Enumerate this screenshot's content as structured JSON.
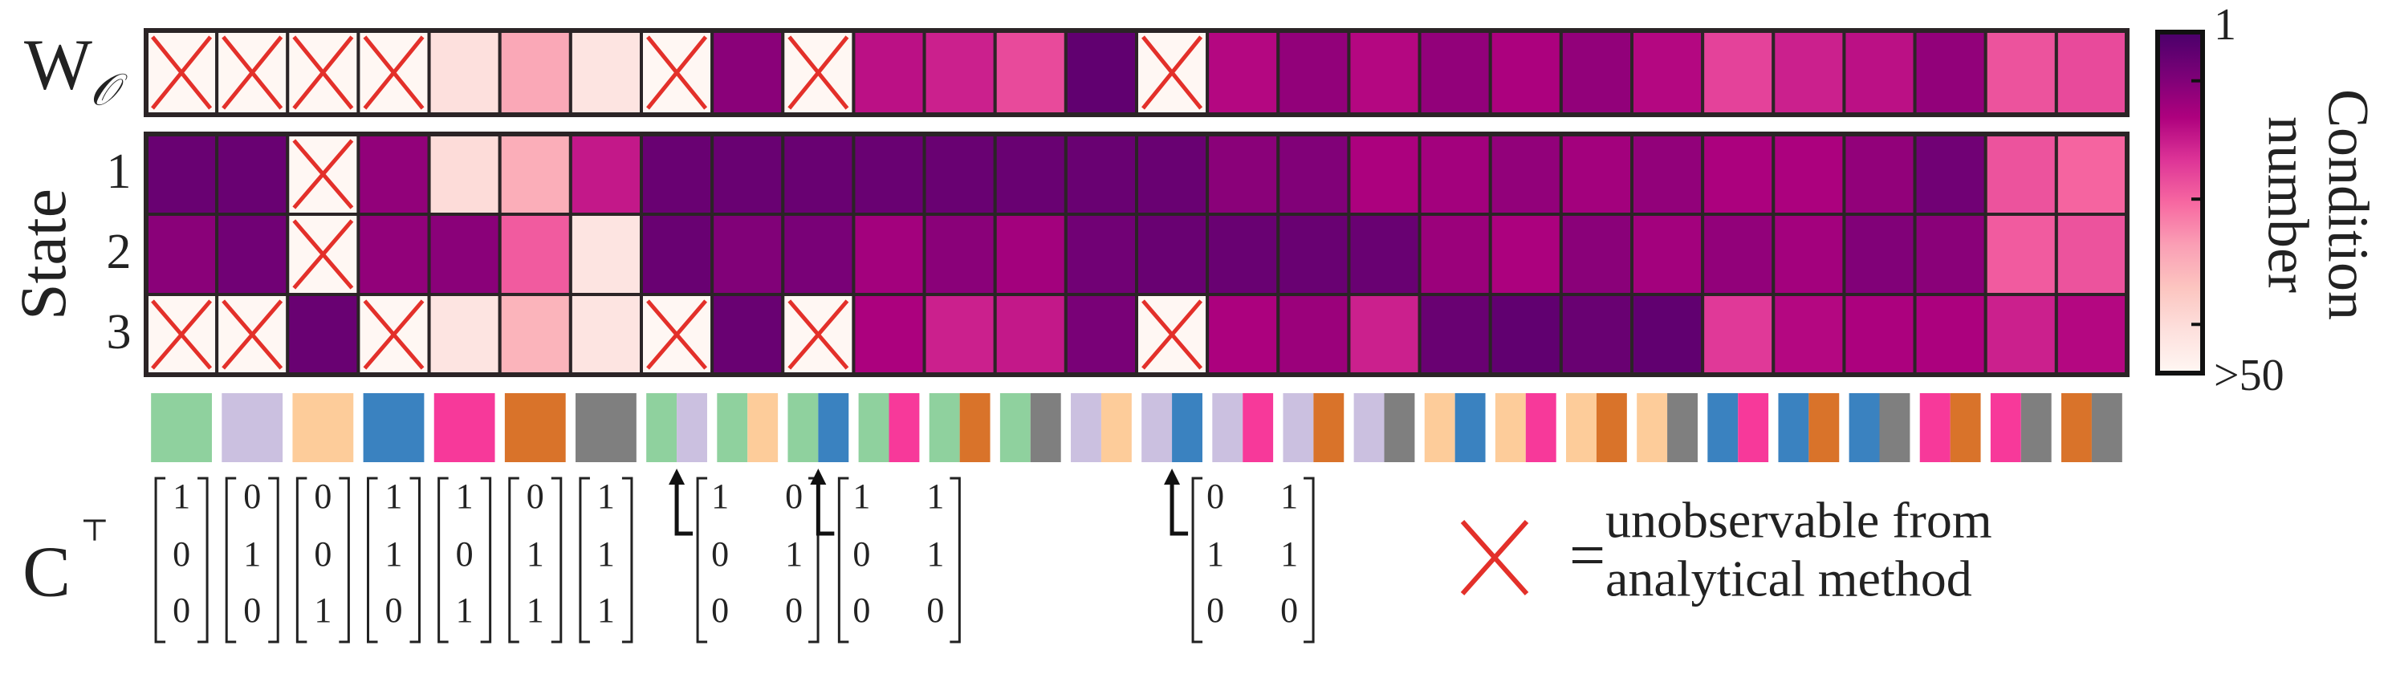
{
  "chart_data": {
    "type": "heatmap",
    "rows": [
      {
        "label": "W",
        "sub": "𝒪",
        "values": [
          null,
          null,
          null,
          null,
          44,
          33,
          45,
          null,
          9,
          null,
          15,
          17,
          22,
          4,
          null,
          14,
          10,
          14,
          10,
          13,
          10,
          14,
          21,
          17,
          15,
          10,
          23,
          22
        ]
      },
      {
        "label": "1",
        "values": [
          5,
          5,
          null,
          10,
          43,
          34,
          16,
          5,
          5,
          5,
          5,
          5,
          5,
          5,
          5,
          9,
          8,
          13,
          12,
          10,
          12,
          10,
          13,
          13,
          10,
          6,
          23,
          25
        ]
      },
      {
        "label": "2",
        "values": [
          9,
          6,
          null,
          10,
          9,
          24,
          45,
          5,
          8,
          7,
          12,
          9,
          12,
          6,
          5,
          5,
          5,
          5,
          11,
          13,
          9,
          12,
          10,
          12,
          8,
          9,
          24,
          23
        ]
      },
      {
        "label": "3",
        "values": [
          null,
          null,
          5,
          null,
          45,
          35,
          45,
          null,
          5,
          null,
          13,
          17,
          16,
          7,
          null,
          13,
          11,
          17,
          5,
          4,
          5,
          4,
          20,
          14,
          13,
          13,
          17,
          14
        ]
      }
    ],
    "group_label": "State",
    "colorbar": {
      "title": [
        "Condition",
        "number"
      ],
      "lim": [
        1,
        50
      ],
      "ticks": [
        1,
        {
          "value": 50,
          "label": ">50"
        }
      ],
      "minor_ticks": [
        8,
        25,
        43
      ],
      "colormap": [
        "#49006a",
        "#7a0177",
        "#ae017e",
        "#dd3497",
        "#f768a1",
        "#fa9fb5",
        "#fcc5c0",
        "#fde0dd",
        "#fff7f3"
      ]
    },
    "column_colors": [
      [
        "#8fd19e"
      ],
      [
        "#cbc0e0"
      ],
      [
        "#fdcc9a"
      ],
      [
        "#3a82c0"
      ],
      [
        "#f7399a"
      ],
      [
        "#d9732a"
      ],
      [
        "#7f7f7f"
      ],
      [
        "#8fd19e",
        "#cbc0e0"
      ],
      [
        "#8fd19e",
        "#fdcc9a"
      ],
      [
        "#8fd19e",
        "#3a82c0"
      ],
      [
        "#8fd19e",
        "#f7399a"
      ],
      [
        "#8fd19e",
        "#d9732a"
      ],
      [
        "#8fd19e",
        "#7f7f7f"
      ],
      [
        "#cbc0e0",
        "#fdcc9a"
      ],
      [
        "#cbc0e0",
        "#3a82c0"
      ],
      [
        "#cbc0e0",
        "#f7399a"
      ],
      [
        "#cbc0e0",
        "#d9732a"
      ],
      [
        "#cbc0e0",
        "#7f7f7f"
      ],
      [
        "#fdcc9a",
        "#3a82c0"
      ],
      [
        "#fdcc9a",
        "#f7399a"
      ],
      [
        "#fdcc9a",
        "#d9732a"
      ],
      [
        "#fdcc9a",
        "#7f7f7f"
      ],
      [
        "#3a82c0",
        "#f7399a"
      ],
      [
        "#3a82c0",
        "#d9732a"
      ],
      [
        "#3a82c0",
        "#7f7f7f"
      ],
      [
        "#f7399a",
        "#d9732a"
      ],
      [
        "#f7399a",
        "#7f7f7f"
      ],
      [
        "#d9732a",
        "#7f7f7f"
      ]
    ],
    "c_label": {
      "text": "C",
      "sup": "⊤"
    },
    "vectors": [
      [
        1,
        0,
        0
      ],
      [
        0,
        1,
        0
      ],
      [
        0,
        0,
        1
      ],
      [
        1,
        1,
        0
      ],
      [
        1,
        0,
        1
      ],
      [
        0,
        1,
        1
      ],
      [
        1,
        1,
        1
      ]
    ],
    "matrices": [
      [
        [
          1,
          0
        ],
        [
          0,
          1
        ],
        [
          0,
          0
        ]
      ],
      [
        [
          1,
          1
        ],
        [
          0,
          1
        ],
        [
          0,
          0
        ]
      ],
      [
        [
          0,
          1
        ],
        [
          1,
          1
        ],
        [
          0,
          0
        ]
      ]
    ],
    "legend": {
      "equals": "=",
      "lines": [
        "unobservable from",
        "analytical method"
      ],
      "symbol_color": "#e3302a"
    }
  }
}
